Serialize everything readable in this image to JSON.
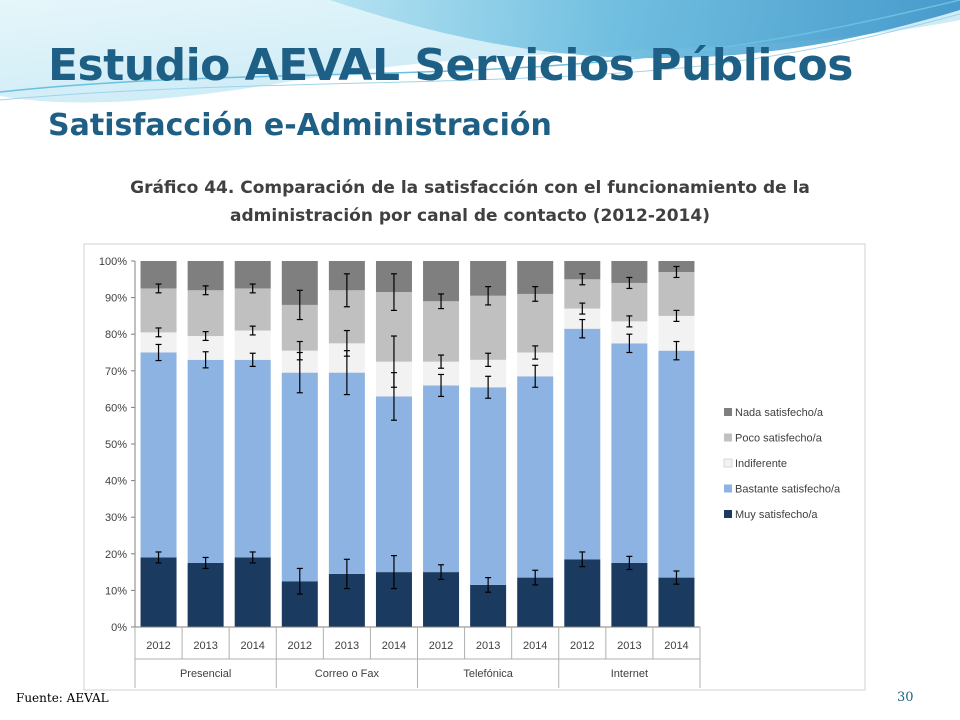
{
  "slide": {
    "title": "Estudio AEVAL Servicios Públicos",
    "subtitle": "Satisfacción e-Administración",
    "source": "Fuente: AEVAL",
    "page_number": "30"
  },
  "colors": {
    "title": "#1e5f86",
    "muy": "#1b3a5f",
    "bastante": "#8db3e2",
    "indiferente": "#f2f2f2",
    "poco": "#c0c0c0",
    "nada": "#7f7f7f"
  },
  "chart_data": {
    "type": "bar",
    "stacked": true,
    "title_lines": [
      "Gráfico 44. Comparación de la satisfacción con el funcionamiento de la",
      "administración por canal de contacto (2012-2014)"
    ],
    "y_ticks": [
      "0%",
      "10%",
      "20%",
      "30%",
      "40%",
      "50%",
      "60%",
      "70%",
      "80%",
      "90%",
      "100%"
    ],
    "ylim": [
      0,
      100
    ],
    "grid": false,
    "legend_position": "right",
    "categories": [
      "2012",
      "2013",
      "2014",
      "2012",
      "2013",
      "2014",
      "2012",
      "2013",
      "2014",
      "2012",
      "2013",
      "2014"
    ],
    "groups": [
      {
        "label": "Presencial",
        "span": 3
      },
      {
        "label": "Correo o Fax",
        "span": 3
      },
      {
        "label": "Telefónica",
        "span": 3
      },
      {
        "label": "Internet",
        "span": 3
      }
    ],
    "series": [
      {
        "name": "Muy satisfecho/a",
        "color_key": "muy",
        "values": [
          19,
          17.5,
          19,
          12.5,
          14.5,
          15,
          15,
          11.5,
          13.5,
          18.5,
          17.5,
          13.5
        ]
      },
      {
        "name": "Bastante satisfecho/a",
        "color_key": "bastante",
        "values": [
          56,
          55.5,
          54,
          57,
          55,
          48,
          51,
          54,
          55,
          63,
          60,
          62
        ]
      },
      {
        "name": "Indiferente",
        "color_key": "indiferente",
        "values": [
          5.5,
          6.5,
          8,
          6,
          8,
          9.5,
          6.5,
          7.5,
          6.5,
          5.5,
          6,
          9.5
        ]
      },
      {
        "name": "Poco satisfecho/a",
        "color_key": "poco",
        "values": [
          12,
          12.5,
          11.5,
          12.5,
          14.5,
          19,
          16.5,
          17.5,
          16,
          8,
          10.5,
          12
        ]
      },
      {
        "name": "Nada satisfecho/a",
        "color_key": "nada",
        "values": [
          7.5,
          8,
          7.5,
          12,
          8,
          8.5,
          11,
          9.5,
          9,
          5,
          6,
          3
        ]
      }
    ],
    "error_bars": {
      "description": "Half-width of the confidence interval at each stacked boundary, in percentage points",
      "half_width": [
        [
          1.5,
          1.5,
          1.5,
          3.5,
          4,
          4.5,
          2,
          2,
          2,
          2,
          1.8,
          1.8
        ],
        [
          2.2,
          2.2,
          1.8,
          5.5,
          6,
          6.5,
          3,
          3,
          3,
          2.5,
          2.5,
          2.5
        ],
        [
          1.2,
          1.2,
          1.2,
          2.5,
          3.5,
          7,
          1.8,
          1.8,
          1.8,
          1.5,
          1.5,
          1.5
        ],
        [
          1.2,
          1.2,
          1.2,
          4,
          4.5,
          5,
          2,
          2.5,
          2,
          1.5,
          1.5,
          1.5
        ]
      ]
    }
  }
}
